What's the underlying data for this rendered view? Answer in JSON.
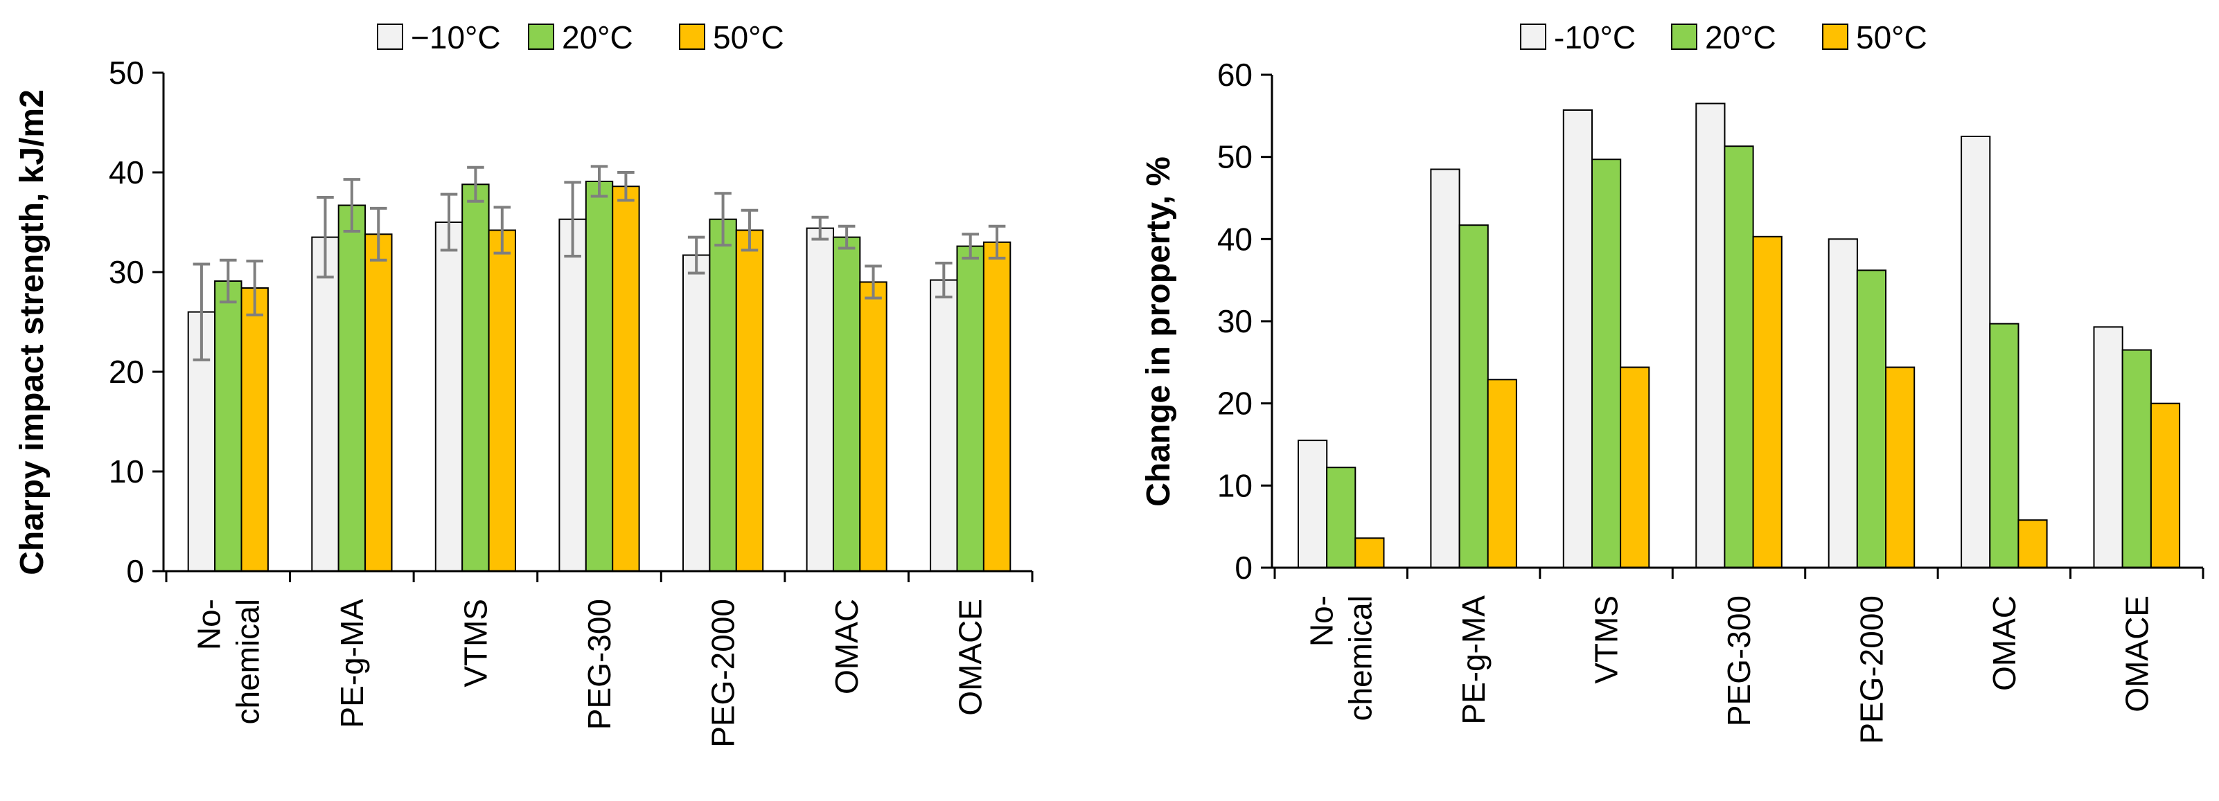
{
  "chart_data": [
    {
      "type": "bar",
      "title": "",
      "xlabel": "",
      "ylabel": "Charpy impact strength, kJ/m2",
      "ylim": [
        0,
        50
      ],
      "yticks": [
        0,
        10,
        20,
        30,
        40,
        50
      ],
      "legend_position": "top",
      "grid": false,
      "categories": [
        [
          "No-",
          "chemical"
        ],
        [
          "PE-g-MA"
        ],
        [
          "VTMS"
        ],
        [
          "PEG-300"
        ],
        [
          "PEG-2000"
        ],
        [
          "OMAC"
        ],
        [
          "OMACE"
        ]
      ],
      "series": [
        {
          "name": "−10°C",
          "color": "#f2f2f2",
          "values": [
            26.0,
            33.5,
            35.0,
            35.3,
            31.7,
            34.4,
            29.2
          ],
          "errors": [
            4.8,
            4.0,
            2.8,
            3.7,
            1.8,
            1.1,
            1.7
          ]
        },
        {
          "name": "20°C",
          "color": "#8bd14f",
          "values": [
            29.1,
            36.7,
            38.8,
            39.1,
            35.3,
            33.5,
            32.6
          ],
          "errors": [
            2.1,
            2.6,
            1.7,
            1.5,
            2.6,
            1.1,
            1.2
          ]
        },
        {
          "name": "50°C",
          "color": "#ffc000",
          "values": [
            28.4,
            33.8,
            34.2,
            38.6,
            34.2,
            29.0,
            33.0
          ],
          "errors": [
            2.7,
            2.6,
            2.3,
            1.4,
            2.0,
            1.6,
            1.6
          ]
        }
      ]
    },
    {
      "type": "bar",
      "title": "",
      "xlabel": "",
      "ylabel": "Change in property, %",
      "ylim": [
        0,
        60
      ],
      "yticks": [
        0,
        10,
        20,
        30,
        40,
        50,
        60
      ],
      "legend_position": "top",
      "grid": false,
      "categories": [
        [
          "No-",
          "chemical"
        ],
        [
          "PE-g-MA"
        ],
        [
          "VTMS"
        ],
        [
          "PEG-300"
        ],
        [
          "PEG-2000"
        ],
        [
          "OMAC"
        ],
        [
          "OMACE"
        ]
      ],
      "series": [
        {
          "name": "-10°C",
          "color": "#f2f2f2",
          "values": [
            15.5,
            48.5,
            55.7,
            56.5,
            40.0,
            52.5,
            29.3
          ]
        },
        {
          "name": "20°C",
          "color": "#8bd14f",
          "values": [
            12.2,
            41.7,
            49.7,
            51.3,
            36.2,
            29.7,
            26.5
          ]
        },
        {
          "name": "50°C",
          "color": "#ffc000",
          "values": [
            3.6,
            22.9,
            24.4,
            40.3,
            24.4,
            5.8,
            20.0
          ]
        }
      ]
    }
  ]
}
